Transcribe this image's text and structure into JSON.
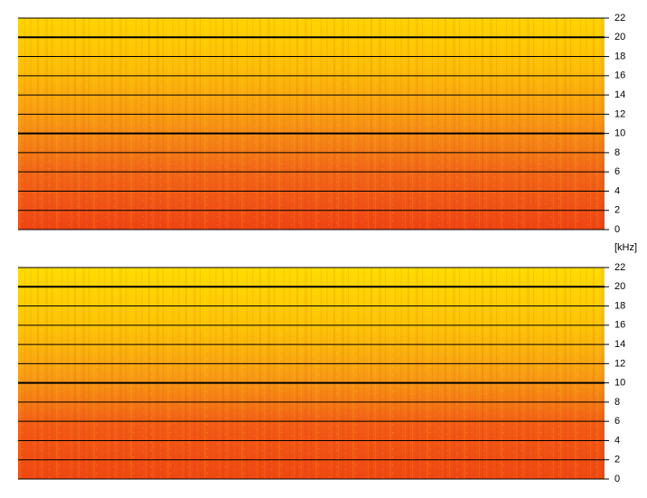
{
  "chart_data": [
    {
      "type": "spectrogram",
      "ylabel": "[kHz]",
      "ylim": [
        0,
        22
      ],
      "yticks": [
        0,
        2,
        4,
        6,
        8,
        10,
        12,
        14,
        16,
        18,
        20,
        22
      ],
      "major_gridlines": [
        10,
        20
      ],
      "grid": true
    },
    {
      "type": "spectrogram",
      "ylim": [
        0,
        22
      ],
      "yticks": [
        0,
        2,
        4,
        6,
        8,
        10,
        12,
        14,
        16,
        18,
        20,
        22
      ],
      "major_gridlines": [
        10,
        20
      ],
      "grid": true
    }
  ]
}
